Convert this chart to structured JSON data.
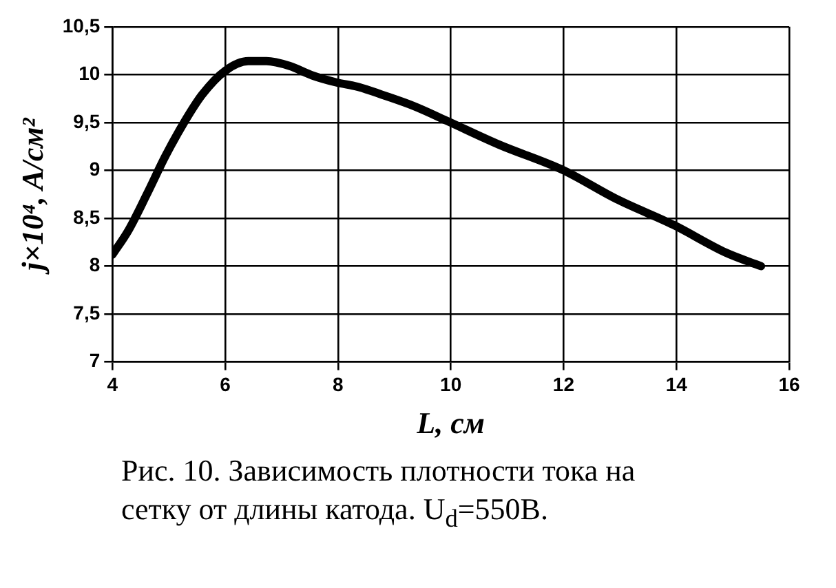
{
  "chart_data": {
    "type": "line",
    "xlabel": "L, см",
    "ylabel": "j×10⁴, A/см²",
    "annotations": [
      "Рис. 10. Зависимость плотности тока на сетку от длины катода. U$_{d}$=550В."
    ],
    "series": [
      {
        "color": "#000000",
        "x": [
          4,
          4.29,
          4.61,
          4.94,
          5.27,
          5.59,
          6.0,
          6.41,
          6.73,
          7.14,
          7.55,
          7.96,
          8.37,
          8.78,
          9.35,
          9.92,
          10.85,
          12,
          12.94,
          13.95,
          14.88,
          15.5
        ],
        "values": [
          8.12,
          8.38,
          8.75,
          9.15,
          9.5,
          9.79,
          10.04,
          10.14,
          10.14,
          10.09,
          9.99,
          9.92,
          9.87,
          9.79,
          9.67,
          9.52,
          9.27,
          9.0,
          8.7,
          8.43,
          8.14,
          8.0
        ]
      }
    ],
    "xlim": [
      4,
      16
    ],
    "xticks": [
      4,
      6,
      8,
      10,
      12,
      14,
      16
    ],
    "ylim": [
      7,
      10.5
    ],
    "yticks": [
      7,
      {
        "value": 7.5,
        "label": "7,5"
      },
      8,
      {
        "value": 8.5,
        "label": "8,5"
      },
      9,
      {
        "value": 9.5,
        "label": "9,5"
      },
      10,
      {
        "value": 10.5,
        "label": "10,5"
      }
    ],
    "grid": true,
    "legend": false,
    "marker": "none",
    "line_style": "solid"
  }
}
